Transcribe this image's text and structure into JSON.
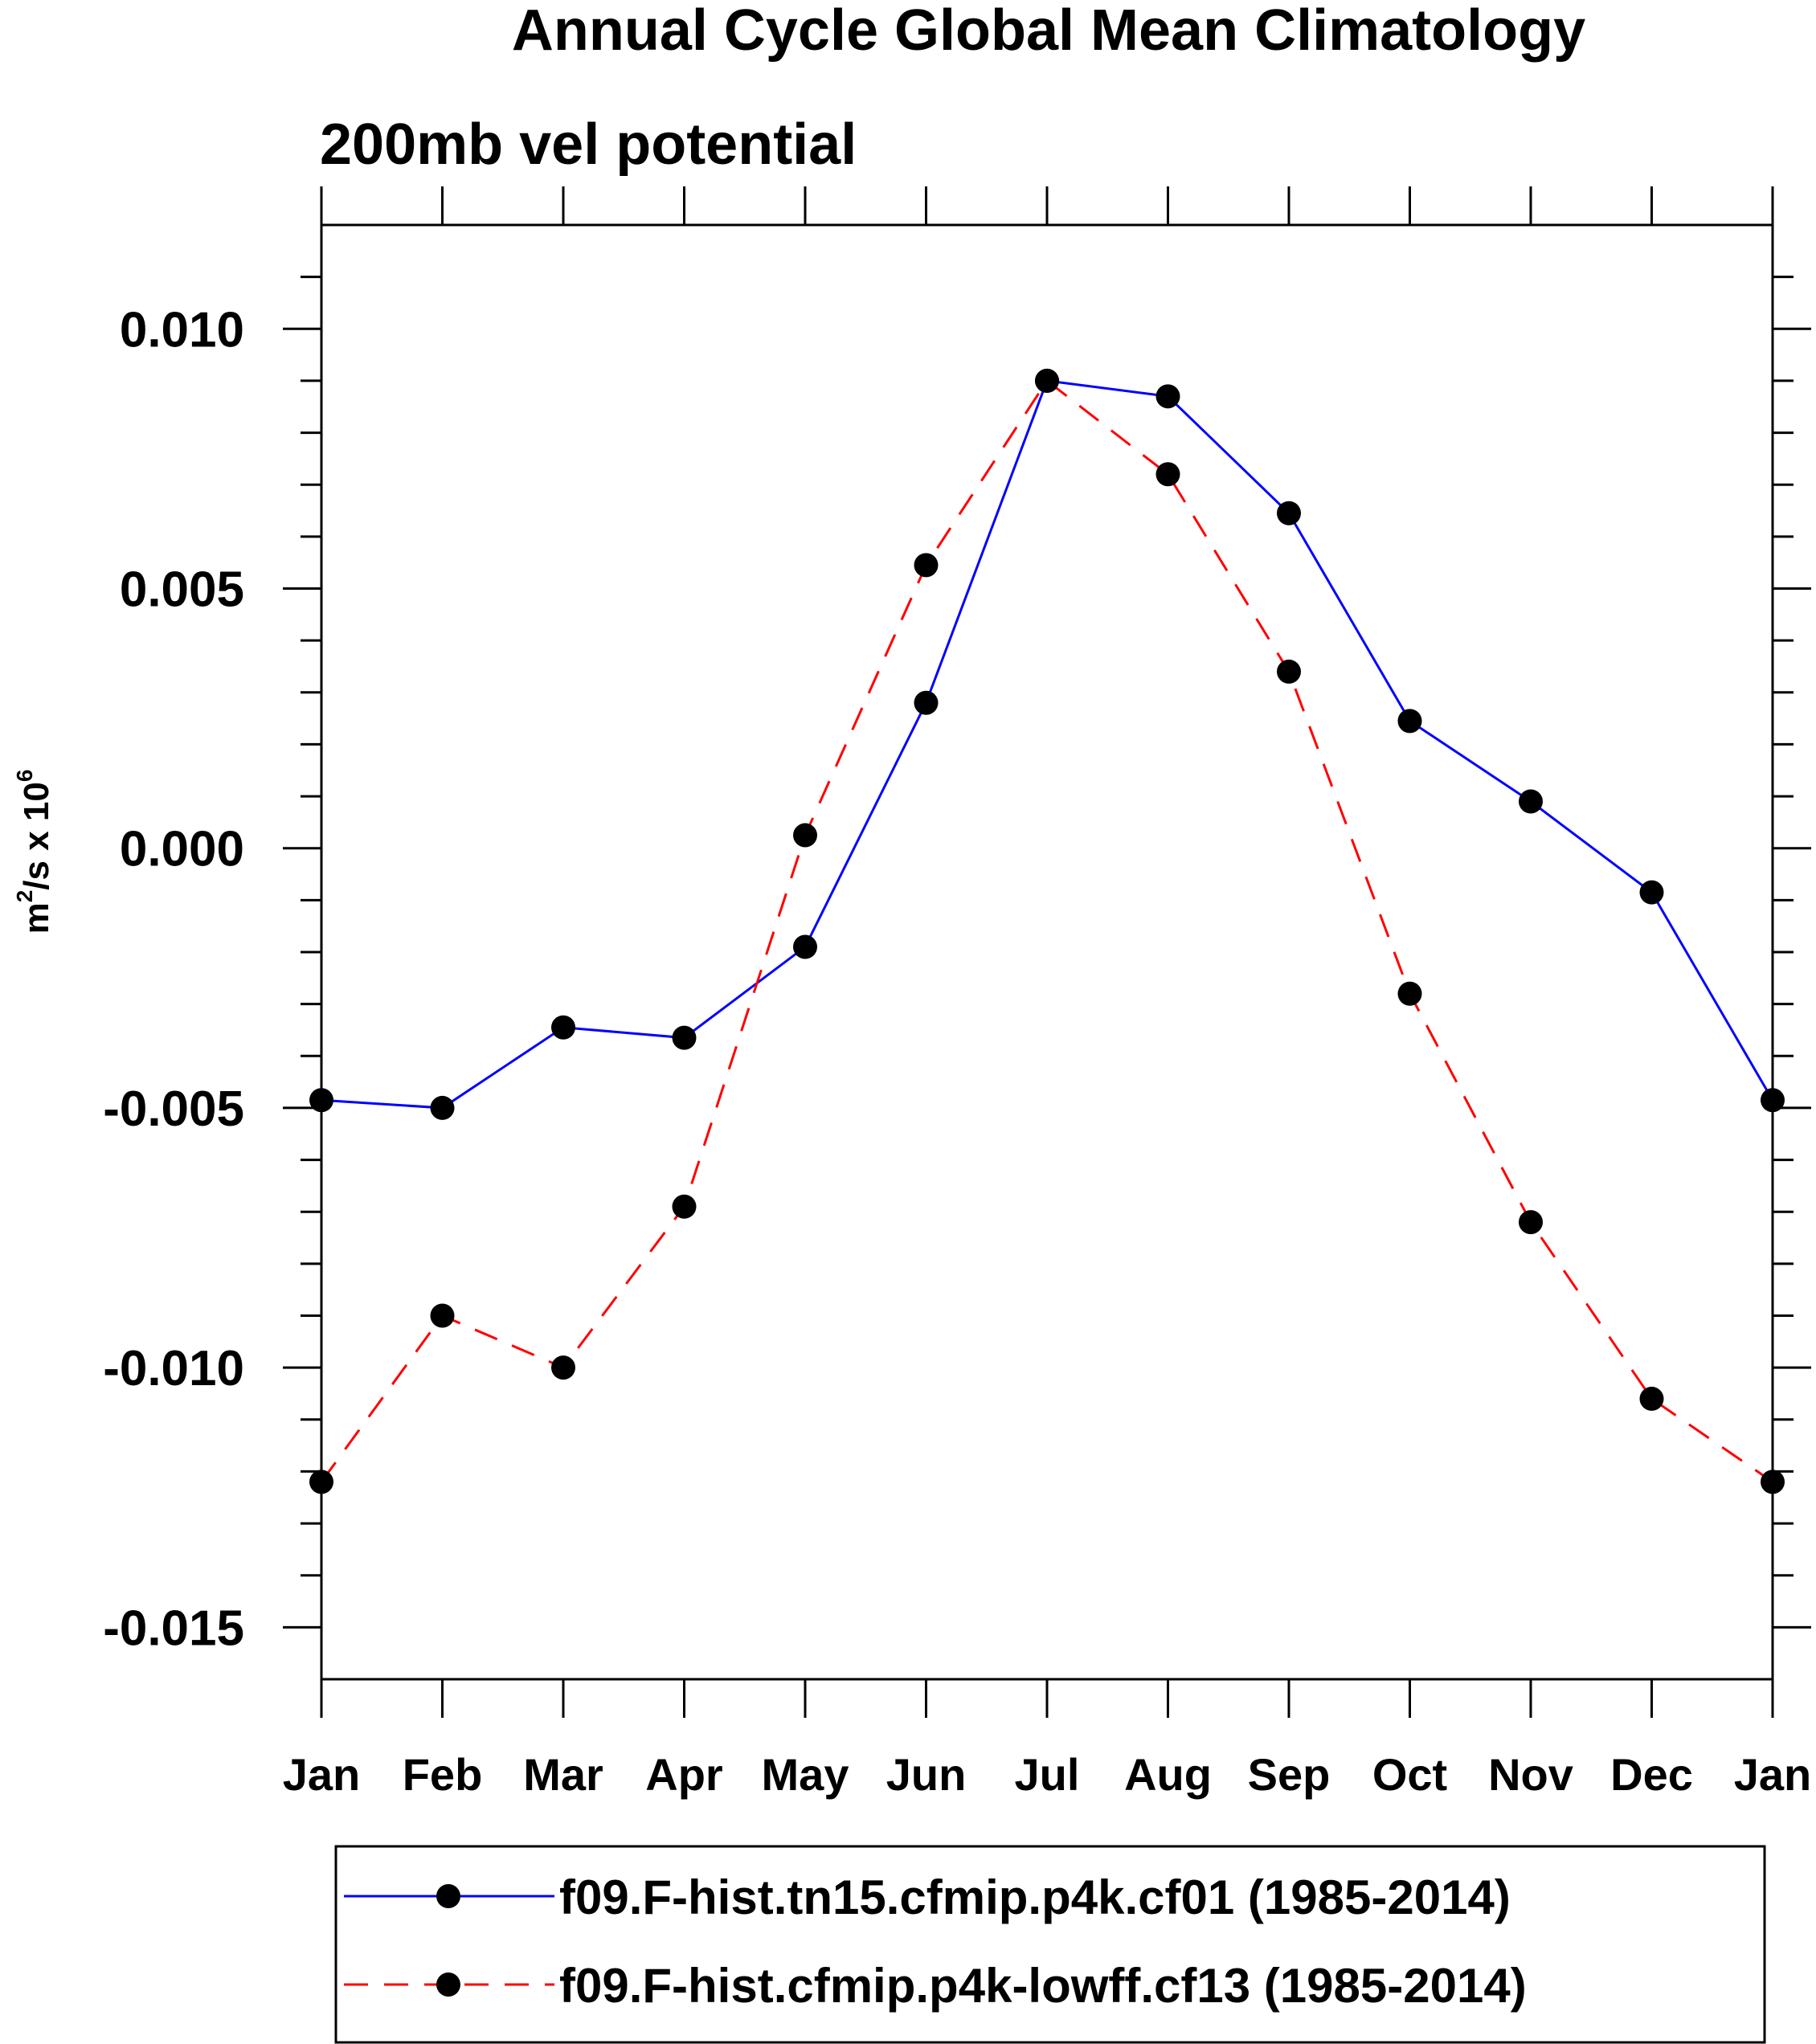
{
  "chart_data": {
    "type": "line",
    "title": "Annual Cycle Global Mean Climatology",
    "subtitle": "200mb vel potential",
    "ylabel_base": "m",
    "ylabel_sup1": "2",
    "ylabel_mid": "/s x 10",
    "ylabel_sup2": "6",
    "xlabel": "",
    "categories": [
      "Jan",
      "Feb",
      "Mar",
      "Apr",
      "May",
      "Jun",
      "Jul",
      "Aug",
      "Sep",
      "Oct",
      "Nov",
      "Dec",
      "Jan"
    ],
    "ylim": [
      -0.016,
      0.012
    ],
    "yticks": [
      -0.015,
      -0.01,
      -0.005,
      0.0,
      0.005,
      0.01
    ],
    "ytick_labels": [
      "-0.015",
      "-0.010",
      "-0.005",
      "0.000",
      "0.005",
      "0.010"
    ],
    "grid": false,
    "legend_position": "bottom",
    "series": [
      {
        "name": "f09.F-hist.tn15.cfmip.p4k.cf01 (1985-2014)",
        "color": "#0000ff",
        "dash": "solid",
        "values": [
          -0.00485,
          -0.005,
          -0.00345,
          -0.00365,
          -0.0019,
          0.0028,
          0.009,
          0.0087,
          0.00645,
          0.00245,
          0.0009,
          -0.00085,
          -0.00485
        ]
      },
      {
        "name": "f09.F-hist.cfmip.p4k-lowff.cf13 (1985-2014)",
        "color": "#ff0000",
        "dash": "dashed",
        "values": [
          -0.0122,
          -0.009,
          -0.01,
          -0.0069,
          0.00025,
          0.00545,
          0.009,
          0.0072,
          0.0034,
          -0.0028,
          -0.0072,
          -0.0106,
          -0.0122
        ]
      }
    ]
  }
}
